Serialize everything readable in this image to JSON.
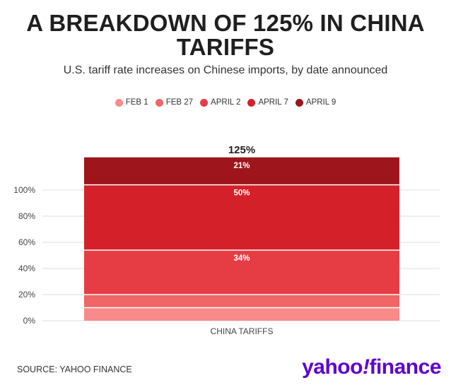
{
  "title": "A BREAKDOWN OF 125% IN CHINA TARIFFS",
  "subtitle": "U.S. tariff rate increases on Chinese imports, by date announced",
  "source": "SOURCE: YAHOO FINANCE",
  "logo": {
    "word": "yahoo",
    "bang": "!",
    "suffix": "finance"
  },
  "colors": {
    "logo": "#5f01d1"
  },
  "chart_data": {
    "type": "bar",
    "stacked": true,
    "categories": [
      "CHINA TARIFFS"
    ],
    "series": [
      {
        "name": "FEB 1",
        "values": [
          10
        ],
        "color": "#f98a8a",
        "label": ""
      },
      {
        "name": "FEB 27",
        "values": [
          10
        ],
        "color": "#f06565",
        "label": ""
      },
      {
        "name": "APRIL 2",
        "values": [
          34
        ],
        "color": "#e63d45",
        "label": "34%"
      },
      {
        "name": "APRIL 7",
        "values": [
          50
        ],
        "color": "#d42029",
        "label": "50%"
      },
      {
        "name": "APRIL 9",
        "values": [
          21
        ],
        "color": "#9e151c",
        "label": "21%"
      }
    ],
    "total_label": "125%",
    "yticks": [
      "0%",
      "20%",
      "40%",
      "60%",
      "80%",
      "100%"
    ],
    "ylim": [
      0,
      125
    ],
    "grid": true,
    "legend_position": "top"
  }
}
